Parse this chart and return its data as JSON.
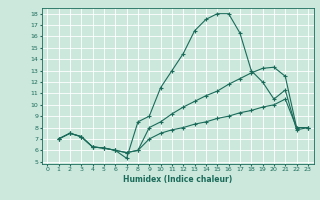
{
  "xlabel": "Humidex (Indice chaleur)",
  "bg_color": "#cce8dc",
  "line_color": "#1a6b5a",
  "xlim": [
    -0.5,
    23.5
  ],
  "ylim": [
    4.8,
    18.5
  ],
  "yticks": [
    5,
    6,
    7,
    8,
    9,
    10,
    11,
    12,
    13,
    14,
    15,
    16,
    17,
    18
  ],
  "xticks": [
    0,
    1,
    2,
    3,
    4,
    5,
    6,
    7,
    8,
    9,
    10,
    11,
    12,
    13,
    14,
    15,
    16,
    17,
    18,
    19,
    20,
    21,
    22,
    23
  ],
  "curves": [
    {
      "x": [
        1,
        2,
        3,
        4,
        5,
        6,
        7,
        8,
        9,
        10,
        11,
        12,
        13,
        14,
        15,
        16,
        17,
        18,
        19,
        20,
        21,
        22,
        23
      ],
      "y": [
        7.0,
        7.5,
        7.2,
        6.3,
        6.2,
        6.0,
        5.3,
        8.5,
        9.0,
        11.5,
        13.0,
        14.5,
        16.5,
        17.5,
        18.0,
        18.0,
        16.3,
        13.0,
        12.0,
        10.5,
        11.3,
        7.8,
        8.0
      ]
    },
    {
      "x": [
        1,
        2,
        3,
        4,
        5,
        6,
        7,
        8,
        9,
        10,
        11,
        12,
        13,
        14,
        15,
        16,
        17,
        18,
        19,
        20,
        21,
        22,
        23
      ],
      "y": [
        7.0,
        7.5,
        7.2,
        6.3,
        6.2,
        6.0,
        5.8,
        6.0,
        8.0,
        8.5,
        9.2,
        9.8,
        10.3,
        10.8,
        11.2,
        11.8,
        12.3,
        12.8,
        13.2,
        13.3,
        12.5,
        8.0,
        8.0
      ]
    },
    {
      "x": [
        1,
        2,
        3,
        4,
        5,
        6,
        7,
        8,
        9,
        10,
        11,
        12,
        13,
        14,
        15,
        16,
        17,
        18,
        19,
        20,
        21,
        22,
        23
      ],
      "y": [
        7.0,
        7.5,
        7.2,
        6.3,
        6.2,
        6.0,
        5.8,
        6.0,
        7.0,
        7.5,
        7.8,
        8.0,
        8.3,
        8.5,
        8.8,
        9.0,
        9.3,
        9.5,
        9.8,
        10.0,
        10.5,
        8.0,
        8.0
      ]
    }
  ]
}
